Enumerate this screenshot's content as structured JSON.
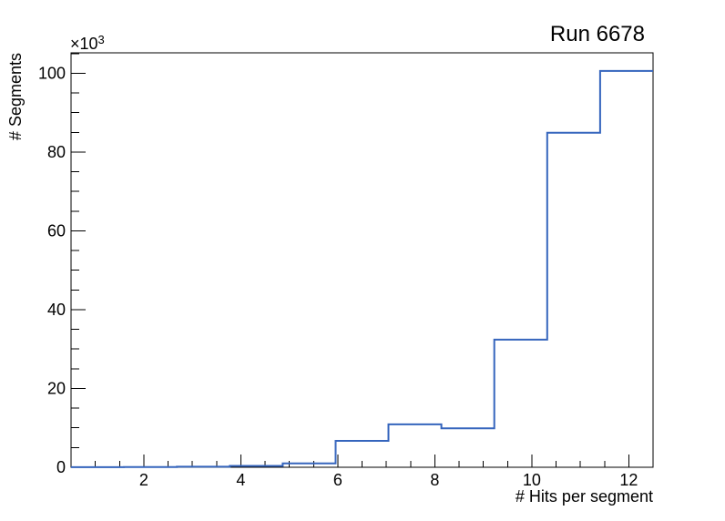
{
  "chart_data": {
    "type": "step-histogram",
    "title": "Run 6678",
    "xlabel": "# Hits per segment",
    "ylabel": "# Segments",
    "y_axis_multiplier": {
      "base": "×10",
      "exponent": "3"
    },
    "x_axis": {
      "lim": [
        0.5,
        12.5
      ],
      "major_ticks": [
        2,
        4,
        6,
        8,
        10,
        12
      ],
      "tick_labels": [
        "2",
        "4",
        "6",
        "8",
        "10",
        "12"
      ],
      "minor_step": 0.5
    },
    "y_axis": {
      "lim": [
        0,
        105.2
      ],
      "major_ticks": [
        0,
        20,
        40,
        60,
        80,
        100
      ],
      "tick_labels": [
        "0",
        "20",
        "40",
        "60",
        "80",
        "100"
      ],
      "minor_step": 5,
      "units": "thousands"
    },
    "bins": {
      "edges": [
        0.5,
        1.591,
        2.682,
        3.773,
        4.864,
        5.955,
        7.045,
        8.136,
        9.227,
        10.318,
        11.409,
        12.5
      ],
      "counts_thousands": [
        0.02,
        0.06,
        0.15,
        0.35,
        1.0,
        6.7,
        10.9,
        9.9,
        32.4,
        84.9,
        100.6
      ]
    },
    "grid": false,
    "legend": false,
    "line_color": "#3565bd",
    "frame_color": "#000000",
    "text_color": "#000000",
    "background_color": "#ffffff"
  }
}
